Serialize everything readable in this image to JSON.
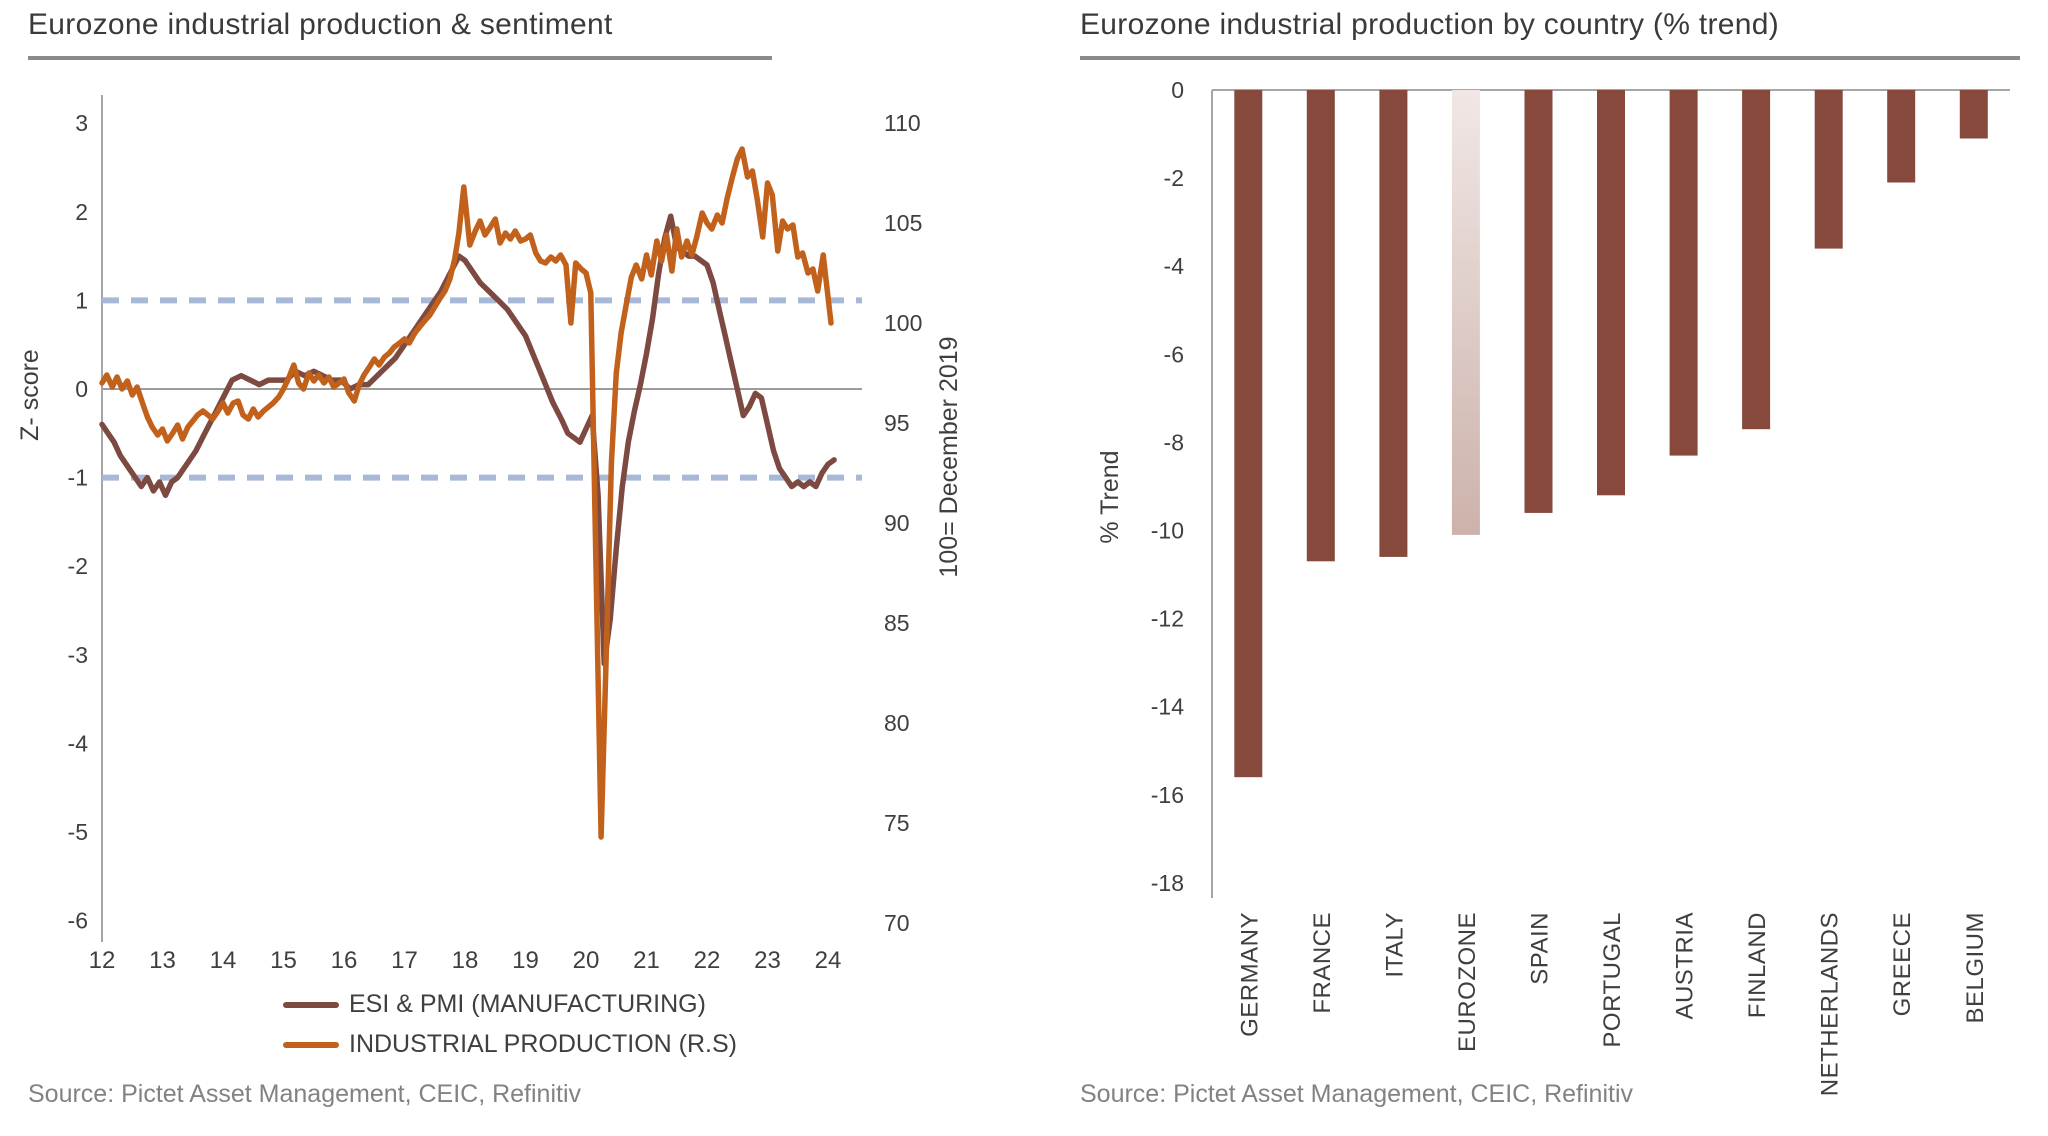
{
  "left_panel": {
    "title": "Eurozone industrial production & sentiment",
    "source": "Source: Pictet Asset Management, CEIC, Refinitiv"
  },
  "right_panel": {
    "title": "Eurozone industrial production by country (% trend)",
    "source": "Source: Pictet Asset Management, CEIC, Refinitiv"
  },
  "colors": {
    "esi_line": "#7D4A41",
    "ip_line": "#C2611C",
    "bar": "#86493C",
    "eurozone_bar_top": "#F0E7E5",
    "eurozone_bar_bottom": "#CDB2AB",
    "dashed_ref": "#A7B9D6",
    "zero_line": "#9C9C9C",
    "axis": "#A6A6A6",
    "title_rule": "#8A8A8A"
  },
  "chart_data": [
    {
      "type": "line",
      "title": "Eurozone industrial production & sentiment",
      "x_axis": {
        "ticks": [
          12,
          13,
          14,
          15,
          16,
          17,
          18,
          19,
          20,
          21,
          22,
          23,
          24
        ],
        "range": [
          11.95,
          24.7
        ]
      },
      "left_axis": {
        "label": "Z- score",
        "min": -6,
        "max": 3,
        "ticks": [
          3,
          2,
          1,
          0,
          -1,
          -2,
          -3,
          -4,
          -5,
          -6
        ]
      },
      "right_axis": {
        "label": "100= December 2019",
        "min": 70,
        "max": 110,
        "ticks": [
          110,
          105,
          100,
          95,
          90,
          85,
          80,
          75,
          70
        ]
      },
      "reference_lines": {
        "dashed_values": [
          1,
          -1
        ],
        "zero_value": 0
      },
      "legend_position": "bottom",
      "series": [
        {
          "name": "ESI  & PMI (MANUFACTURING)",
          "axis": "left",
          "points": [
            [
              12.0,
              -0.4
            ],
            [
              12.1,
              -0.5
            ],
            [
              12.2,
              -0.6
            ],
            [
              12.3,
              -0.75
            ],
            [
              12.45,
              -0.9
            ],
            [
              12.55,
              -1.0
            ],
            [
              12.65,
              -1.1
            ],
            [
              12.75,
              -1.0
            ],
            [
              12.85,
              -1.15
            ],
            [
              12.95,
              -1.05
            ],
            [
              13.05,
              -1.2
            ],
            [
              13.15,
              -1.05
            ],
            [
              13.25,
              -1.0
            ],
            [
              13.4,
              -0.85
            ],
            [
              13.55,
              -0.7
            ],
            [
              13.7,
              -0.5
            ],
            [
              13.85,
              -0.3
            ],
            [
              14.0,
              -0.1
            ],
            [
              14.15,
              0.1
            ],
            [
              14.3,
              0.15
            ],
            [
              14.45,
              0.1
            ],
            [
              14.6,
              0.05
            ],
            [
              14.75,
              0.1
            ],
            [
              14.9,
              0.1
            ],
            [
              15.05,
              0.1
            ],
            [
              15.2,
              0.2
            ],
            [
              15.35,
              0.15
            ],
            [
              15.5,
              0.2
            ],
            [
              15.65,
              0.15
            ],
            [
              15.8,
              0.1
            ],
            [
              15.95,
              0.1
            ],
            [
              16.1,
              0.0
            ],
            [
              16.25,
              0.05
            ],
            [
              16.4,
              0.05
            ],
            [
              16.55,
              0.15
            ],
            [
              16.7,
              0.25
            ],
            [
              16.85,
              0.35
            ],
            [
              17.0,
              0.5
            ],
            [
              17.15,
              0.65
            ],
            [
              17.3,
              0.8
            ],
            [
              17.45,
              0.95
            ],
            [
              17.6,
              1.1
            ],
            [
              17.75,
              1.3
            ],
            [
              17.9,
              1.5
            ],
            [
              18.0,
              1.45
            ],
            [
              18.1,
              1.35
            ],
            [
              18.25,
              1.2
            ],
            [
              18.4,
              1.1
            ],
            [
              18.55,
              1.0
            ],
            [
              18.7,
              0.9
            ],
            [
              18.85,
              0.75
            ],
            [
              19.0,
              0.6
            ],
            [
              19.15,
              0.35
            ],
            [
              19.3,
              0.1
            ],
            [
              19.45,
              -0.15
            ],
            [
              19.6,
              -0.35
            ],
            [
              19.7,
              -0.5
            ],
            [
              19.8,
              -0.55
            ],
            [
              19.9,
              -0.6
            ],
            [
              20.0,
              -0.45
            ],
            [
              20.1,
              -0.3
            ],
            [
              20.2,
              -1.2
            ],
            [
              20.3,
              -3.1
            ],
            [
              20.4,
              -2.6
            ],
            [
              20.5,
              -1.8
            ],
            [
              20.6,
              -1.1
            ],
            [
              20.7,
              -0.6
            ],
            [
              20.8,
              -0.25
            ],
            [
              20.9,
              0.05
            ],
            [
              21.0,
              0.4
            ],
            [
              21.1,
              0.8
            ],
            [
              21.2,
              1.3
            ],
            [
              21.3,
              1.7
            ],
            [
              21.4,
              1.95
            ],
            [
              21.5,
              1.6
            ],
            [
              21.6,
              1.55
            ],
            [
              21.7,
              1.5
            ],
            [
              21.8,
              1.5
            ],
            [
              21.9,
              1.45
            ],
            [
              22.0,
              1.4
            ],
            [
              22.1,
              1.2
            ],
            [
              22.2,
              0.9
            ],
            [
              22.3,
              0.6
            ],
            [
              22.4,
              0.3
            ],
            [
              22.5,
              0.0
            ],
            [
              22.6,
              -0.3
            ],
            [
              22.7,
              -0.2
            ],
            [
              22.8,
              -0.05
            ],
            [
              22.9,
              -0.1
            ],
            [
              23.0,
              -0.4
            ],
            [
              23.1,
              -0.7
            ],
            [
              23.2,
              -0.9
            ],
            [
              23.3,
              -1.0
            ],
            [
              23.4,
              -1.1
            ],
            [
              23.5,
              -1.05
            ],
            [
              23.6,
              -1.1
            ],
            [
              23.7,
              -1.05
            ],
            [
              23.8,
              -1.1
            ],
            [
              23.9,
              -0.95
            ],
            [
              24.0,
              -0.85
            ],
            [
              24.1,
              -0.8
            ]
          ]
        },
        {
          "name": "INDUSTRIAL PRODUCTION (R.S)",
          "axis": "right",
          "points": [
            [
              12.0,
              97.0
            ],
            [
              12.08,
              97.4
            ],
            [
              12.17,
              96.8
            ],
            [
              12.25,
              97.3
            ],
            [
              12.33,
              96.7
            ],
            [
              12.42,
              97.1
            ],
            [
              12.5,
              96.4
            ],
            [
              12.58,
              96.8
            ],
            [
              12.67,
              96.0
            ],
            [
              12.75,
              95.3
            ],
            [
              12.83,
              94.8
            ],
            [
              12.92,
              94.4
            ],
            [
              13.0,
              94.7
            ],
            [
              13.08,
              94.1
            ],
            [
              13.17,
              94.5
            ],
            [
              13.25,
              94.9
            ],
            [
              13.33,
              94.2
            ],
            [
              13.42,
              94.8
            ],
            [
              13.5,
              95.1
            ],
            [
              13.58,
              95.4
            ],
            [
              13.67,
              95.6
            ],
            [
              13.75,
              95.4
            ],
            [
              13.83,
              95.2
            ],
            [
              13.92,
              95.6
            ],
            [
              14.0,
              96.0
            ],
            [
              14.08,
              95.5
            ],
            [
              14.17,
              96.0
            ],
            [
              14.25,
              96.1
            ],
            [
              14.33,
              95.4
            ],
            [
              14.42,
              95.2
            ],
            [
              14.5,
              95.7
            ],
            [
              14.58,
              95.3
            ],
            [
              14.67,
              95.6
            ],
            [
              14.75,
              95.8
            ],
            [
              14.83,
              96.0
            ],
            [
              14.92,
              96.3
            ],
            [
              15.0,
              96.7
            ],
            [
              15.08,
              97.2
            ],
            [
              15.17,
              97.9
            ],
            [
              15.25,
              97.0
            ],
            [
              15.33,
              96.7
            ],
            [
              15.42,
              97.5
            ],
            [
              15.5,
              97.1
            ],
            [
              15.58,
              97.4
            ],
            [
              15.67,
              97.0
            ],
            [
              15.75,
              97.3
            ],
            [
              15.83,
              96.8
            ],
            [
              15.92,
              97.0
            ],
            [
              16.0,
              97.2
            ],
            [
              16.08,
              96.5
            ],
            [
              16.17,
              96.1
            ],
            [
              16.25,
              96.9
            ],
            [
              16.33,
              97.4
            ],
            [
              16.42,
              97.8
            ],
            [
              16.5,
              98.2
            ],
            [
              16.58,
              97.9
            ],
            [
              16.67,
              98.3
            ],
            [
              16.75,
              98.5
            ],
            [
              16.83,
              98.8
            ],
            [
              16.92,
              99.0
            ],
            [
              17.0,
              99.2
            ],
            [
              17.08,
              99.0
            ],
            [
              17.17,
              99.5
            ],
            [
              17.25,
              99.8
            ],
            [
              17.33,
              100.1
            ],
            [
              17.42,
              100.4
            ],
            [
              17.5,
              100.8
            ],
            [
              17.58,
              101.2
            ],
            [
              17.67,
              101.6
            ],
            [
              17.75,
              102.2
            ],
            [
              17.83,
              103.2
            ],
            [
              17.9,
              104.5
            ],
            [
              17.98,
              106.8
            ],
            [
              18.08,
              103.9
            ],
            [
              18.17,
              104.6
            ],
            [
              18.25,
              105.1
            ],
            [
              18.33,
              104.4
            ],
            [
              18.42,
              104.8
            ],
            [
              18.5,
              105.2
            ],
            [
              18.58,
              104.0
            ],
            [
              18.67,
              104.5
            ],
            [
              18.75,
              104.2
            ],
            [
              18.83,
              104.6
            ],
            [
              18.92,
              104.1
            ],
            [
              19.0,
              104.2
            ],
            [
              19.08,
              104.4
            ],
            [
              19.17,
              103.5
            ],
            [
              19.25,
              103.1
            ],
            [
              19.33,
              103.0
            ],
            [
              19.42,
              103.3
            ],
            [
              19.5,
              103.1
            ],
            [
              19.58,
              103.4
            ],
            [
              19.67,
              102.9
            ],
            [
              19.75,
              100.0
            ],
            [
              19.83,
              103.0
            ],
            [
              19.92,
              102.7
            ],
            [
              20.0,
              102.5
            ],
            [
              20.08,
              101.5
            ],
            [
              20.17,
              87.0
            ],
            [
              20.25,
              74.3
            ],
            [
              20.33,
              83.0
            ],
            [
              20.42,
              93.0
            ],
            [
              20.5,
              97.5
            ],
            [
              20.58,
              99.5
            ],
            [
              20.67,
              101.0
            ],
            [
              20.75,
              102.3
            ],
            [
              20.83,
              102.9
            ],
            [
              20.92,
              102.2
            ],
            [
              21.0,
              103.4
            ],
            [
              21.08,
              102.4
            ],
            [
              21.17,
              104.1
            ],
            [
              21.25,
              103.1
            ],
            [
              21.33,
              104.4
            ],
            [
              21.42,
              102.6
            ],
            [
              21.5,
              104.7
            ],
            [
              21.58,
              103.3
            ],
            [
              21.67,
              104.1
            ],
            [
              21.75,
              103.4
            ],
            [
              21.83,
              104.3
            ],
            [
              21.92,
              105.5
            ],
            [
              22.0,
              105.0
            ],
            [
              22.08,
              104.7
            ],
            [
              22.17,
              105.4
            ],
            [
              22.25,
              105.0
            ],
            [
              22.33,
              106.2
            ],
            [
              22.42,
              107.3
            ],
            [
              22.5,
              108.2
            ],
            [
              22.58,
              108.7
            ],
            [
              22.67,
              107.3
            ],
            [
              22.75,
              107.6
            ],
            [
              22.83,
              106.2
            ],
            [
              22.92,
              104.3
            ],
            [
              23.0,
              107.0
            ],
            [
              23.08,
              106.4
            ],
            [
              23.17,
              103.6
            ],
            [
              23.25,
              105.1
            ],
            [
              23.33,
              104.7
            ],
            [
              23.42,
              104.9
            ],
            [
              23.5,
              103.3
            ],
            [
              23.58,
              103.5
            ],
            [
              23.67,
              102.5
            ],
            [
              23.75,
              102.7
            ],
            [
              23.83,
              101.6
            ],
            [
              23.92,
              103.4
            ],
            [
              24.05,
              100.0
            ]
          ]
        }
      ]
    },
    {
      "type": "bar",
      "title": "Eurozone industrial production by country (% trend)",
      "ylabel": "% Trend",
      "ylim": [
        -18,
        0
      ],
      "yticks": [
        0,
        -2,
        -4,
        -6,
        -8,
        -10,
        -12,
        -14,
        -16,
        -18
      ],
      "categories": [
        "GERMANY",
        "FRANCE",
        "ITALY",
        "EUROZONE",
        "SPAIN",
        "PORTUGAL",
        "AUSTRIA",
        "FINLAND",
        "NETHERLANDS",
        "GREECE",
        "BELGIUM"
      ],
      "values": [
        -15.6,
        -10.7,
        -10.6,
        -10.1,
        -9.6,
        -9.2,
        -8.3,
        -7.7,
        -3.6,
        -2.1,
        -1.1
      ],
      "highlight": {
        "category": "EUROZONE",
        "index": 3
      }
    }
  ]
}
